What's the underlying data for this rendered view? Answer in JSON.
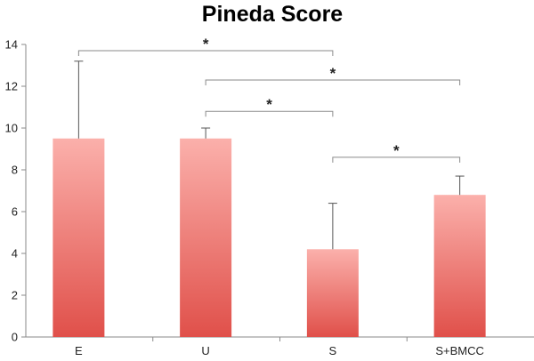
{
  "chart_data": {
    "type": "bar",
    "title": "Pineda Score",
    "xlabel": "",
    "ylabel": "",
    "categories": [
      "E",
      "U",
      "S",
      "S+BMCC"
    ],
    "values": [
      9.5,
      9.5,
      4.2,
      6.8
    ],
    "error_upper": [
      13.2,
      10.0,
      6.4,
      7.7
    ],
    "ylim": [
      0,
      14
    ],
    "yticks": [
      "0",
      "2",
      "4",
      "6",
      "8",
      "10",
      "12",
      "14"
    ],
    "grid": false,
    "legend": "none",
    "bar_color_top": "#fbb0ab",
    "bar_color_bottom": "#e0504a",
    "significance": [
      {
        "from": 0,
        "to": 2,
        "label": "*",
        "level": 13.7
      },
      {
        "from": 1,
        "to": 3,
        "label": "*",
        "level": 12.3
      },
      {
        "from": 1,
        "to": 2,
        "label": "*",
        "level": 10.8
      },
      {
        "from": 2,
        "to": 3,
        "label": "*",
        "level": 8.6
      }
    ]
  }
}
